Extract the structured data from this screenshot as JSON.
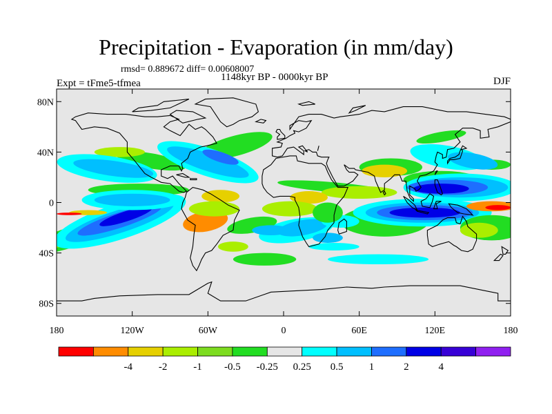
{
  "title": "Precipitation - Evaporation (in mm/day)",
  "stats": "rmsd= 0.889672 diff= 0.00608007",
  "experiment": "Expt = tFme5-tfmea",
  "period": "1148kyr BP - 0000kyr BP",
  "season": "DJF",
  "map": {
    "lon_range": [
      -180,
      180
    ],
    "lat_range": [
      -90,
      90
    ],
    "lat_ticks": [
      {
        "value": 80,
        "label": "80N"
      },
      {
        "value": 40,
        "label": "40N"
      },
      {
        "value": 0,
        "label": "0"
      },
      {
        "value": -40,
        "label": "40S"
      },
      {
        "value": -80,
        "label": "80S"
      }
    ],
    "lon_ticks": [
      {
        "value": -180,
        "label": "180"
      },
      {
        "value": -120,
        "label": "120W"
      },
      {
        "value": -60,
        "label": "60W"
      },
      {
        "value": 0,
        "label": "0"
      },
      {
        "value": 60,
        "label": "60E"
      },
      {
        "value": 120,
        "label": "120E"
      },
      {
        "value": 180,
        "label": "180"
      }
    ]
  },
  "colorbar": {
    "colors": [
      "#ff0000",
      "#ff8c00",
      "#e6d000",
      "#aaee00",
      "#7ddc1f",
      "#22dd22",
      "#e6e6e6",
      "#00ffff",
      "#00bfff",
      "#1e6eff",
      "#0000e6",
      "#3700d6",
      "#9020f0"
    ],
    "labels": [
      "-4",
      "-2",
      "-1",
      "-0.5",
      "-0.25",
      "0.25",
      "0.5",
      "1",
      "2",
      "4"
    ]
  },
  "field_colors": {
    "background": "#e6e6e6",
    "strong_negative": "#ff0000",
    "negative": "#ff8c00",
    "weak_negative": "#e6d000",
    "slight_negative": "#aaee00",
    "near_zero_negative": "#22dd22",
    "near_zero_positive": "#00ffff",
    "positive": "#00bfff",
    "strong_positive": "#1e6eff",
    "very_strong_positive": "#0000e6"
  }
}
